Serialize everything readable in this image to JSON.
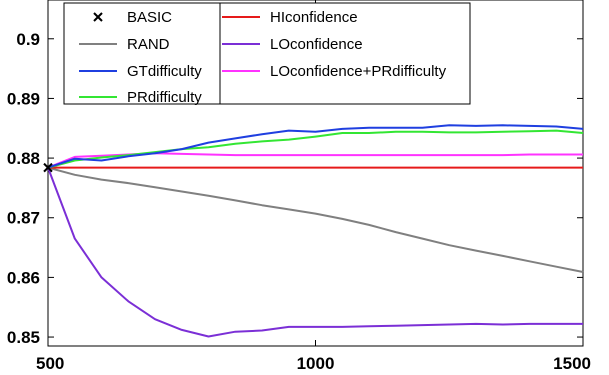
{
  "chart_data": {
    "type": "line",
    "xlim": [
      500,
      1500
    ],
    "ylim": [
      0.8485,
      0.9065
    ],
    "xticks": [
      500,
      1000,
      1500
    ],
    "yticks": [
      0.85,
      0.86,
      0.87,
      0.88,
      0.89,
      0.9
    ],
    "xtick_labels": [
      "500",
      "1000",
      "1500"
    ],
    "ytick_labels": [
      "0.85",
      "0.86",
      "0.87",
      "0.88",
      "0.89",
      "0.9"
    ],
    "grid": false,
    "legend_position": "top-left",
    "start_marker": {
      "name": "BASIC",
      "x": 500,
      "y": 0.8784,
      "marker": "x"
    },
    "series": [
      {
        "name": "RAND",
        "color": "#808080",
        "x": [
          500,
          550,
          600,
          650,
          700,
          750,
          800,
          850,
          900,
          950,
          1000,
          1050,
          1100,
          1150,
          1200,
          1250,
          1300,
          1350,
          1400,
          1450,
          1500
        ],
        "y": [
          0.8784,
          0.8772,
          0.8764,
          0.8758,
          0.8751,
          0.8744,
          0.8737,
          0.8729,
          0.8721,
          0.8714,
          0.8707,
          0.8698,
          0.8688,
          0.8676,
          0.8665,
          0.8654,
          0.8645,
          0.8636,
          0.8627,
          0.8618,
          0.8609
        ]
      },
      {
        "name": "GTdifficulty",
        "color": "#1f3fe0",
        "x": [
          500,
          550,
          600,
          650,
          700,
          750,
          800,
          850,
          900,
          950,
          1000,
          1050,
          1100,
          1150,
          1200,
          1250,
          1300,
          1350,
          1400,
          1450,
          1500
        ],
        "y": [
          0.8784,
          0.8799,
          0.8796,
          0.8803,
          0.8808,
          0.8815,
          0.8826,
          0.8833,
          0.884,
          0.8846,
          0.8844,
          0.8849,
          0.8851,
          0.8851,
          0.8851,
          0.8855,
          0.8854,
          0.8855,
          0.8854,
          0.8853,
          0.8849
        ]
      },
      {
        "name": "PRdifficulty",
        "color": "#33e633",
        "x": [
          500,
          550,
          600,
          650,
          700,
          750,
          800,
          850,
          900,
          950,
          1000,
          1050,
          1100,
          1150,
          1200,
          1250,
          1300,
          1350,
          1400,
          1450,
          1500
        ],
        "y": [
          0.8784,
          0.8796,
          0.8801,
          0.8805,
          0.881,
          0.8815,
          0.8818,
          0.8824,
          0.8828,
          0.8831,
          0.8836,
          0.8842,
          0.8842,
          0.8844,
          0.8844,
          0.8843,
          0.8843,
          0.8844,
          0.8845,
          0.8846,
          0.8842
        ]
      },
      {
        "name": "HIconfidence",
        "color": "#e61a1a",
        "x": [
          500,
          1500
        ],
        "y": [
          0.8784,
          0.8784
        ]
      },
      {
        "name": "LOconfidence",
        "color": "#7b2fd6",
        "x": [
          500,
          550,
          600,
          650,
          700,
          750,
          800,
          850,
          900,
          950,
          1000,
          1050,
          1100,
          1150,
          1200,
          1250,
          1300,
          1350,
          1400,
          1450,
          1500
        ],
        "y": [
          0.8784,
          0.8665,
          0.86,
          0.856,
          0.853,
          0.8512,
          0.8501,
          0.8509,
          0.8511,
          0.8517,
          0.8517,
          0.8517,
          0.8518,
          0.8519,
          0.852,
          0.8521,
          0.8522,
          0.8521,
          0.8522,
          0.8522,
          0.8522
        ]
      },
      {
        "name": "LOconfidence+PRdifficulty",
        "color": "#ff33ff",
        "x": [
          500,
          550,
          600,
          650,
          700,
          750,
          800,
          850,
          900,
          950,
          1000,
          1050,
          1100,
          1150,
          1200,
          1250,
          1300,
          1350,
          1400,
          1450,
          1500
        ],
        "y": [
          0.8784,
          0.8802,
          0.8804,
          0.8806,
          0.8808,
          0.8807,
          0.8806,
          0.8805,
          0.8805,
          0.8805,
          0.8805,
          0.8805,
          0.8805,
          0.8805,
          0.8805,
          0.8805,
          0.8805,
          0.8805,
          0.8806,
          0.8806,
          0.8806
        ]
      }
    ],
    "legend": {
      "column1": [
        "BASIC",
        "RAND",
        "GTdifficulty",
        "PRdifficulty"
      ],
      "column2": [
        "HIconfidence",
        "LOconfidence",
        "LOconfidence+PRdifficulty"
      ]
    }
  }
}
